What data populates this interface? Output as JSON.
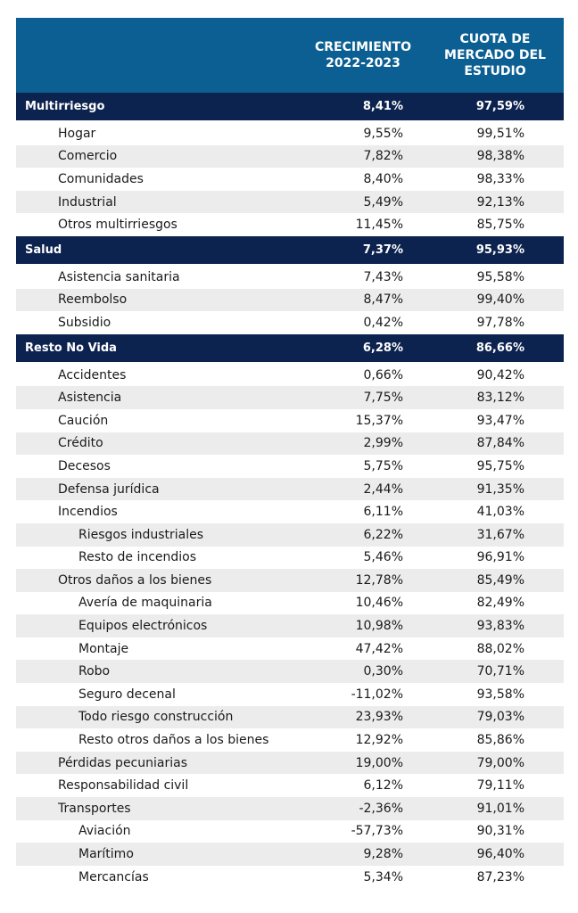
{
  "header": {
    "col1": "CRECIMIENTO\n2022-2023",
    "col2": "CUOTA DE\nMERCADO DEL\nESTUDIO"
  },
  "groups": [
    {
      "label": "Multirriesgo",
      "growth": "8,41%",
      "share": "97,59%",
      "rows": [
        {
          "label": "Hogar",
          "growth": "9,55%",
          "share": "99,51%",
          "level": 1
        },
        {
          "label": "Comercio",
          "growth": "7,82%",
          "share": "98,38%",
          "level": 1
        },
        {
          "label": "Comunidades",
          "growth": "8,40%",
          "share": "98,33%",
          "level": 1
        },
        {
          "label": "Industrial",
          "growth": "5,49%",
          "share": "92,13%",
          "level": 1
        },
        {
          "label": "Otros multirriesgos",
          "growth": "11,45%",
          "share": "85,75%",
          "level": 1
        }
      ]
    },
    {
      "label": "Salud",
      "growth": "7,37%",
      "share": "95,93%",
      "rows": [
        {
          "label": "Asistencia sanitaria",
          "growth": "7,43%",
          "share": "95,58%",
          "level": 1
        },
        {
          "label": "Reembolso",
          "growth": "8,47%",
          "share": "99,40%",
          "level": 1
        },
        {
          "label": "Subsidio",
          "growth": "0,42%",
          "share": "97,78%",
          "level": 1
        }
      ]
    },
    {
      "label": "Resto No Vida",
      "growth": "6,28%",
      "share": "86,66%",
      "rows": [
        {
          "label": "Accidentes",
          "growth": "0,66%",
          "share": "90,42%",
          "level": 1
        },
        {
          "label": "Asistencia",
          "growth": "7,75%",
          "share": "83,12%",
          "level": 1
        },
        {
          "label": "Caución",
          "growth": "15,37%",
          "share": "93,47%",
          "level": 1
        },
        {
          "label": "Crédito",
          "growth": "2,99%",
          "share": "87,84%",
          "level": 1
        },
        {
          "label": "Decesos",
          "growth": "5,75%",
          "share": "95,75%",
          "level": 1
        },
        {
          "label": "Defensa jurídica",
          "growth": "2,44%",
          "share": "91,35%",
          "level": 1
        },
        {
          "label": "Incendios",
          "growth": "6,11%",
          "share": "41,03%",
          "level": 1
        },
        {
          "label": "Riesgos industriales",
          "growth": "6,22%",
          "share": "31,67%",
          "level": 2
        },
        {
          "label": "Resto de incendios",
          "growth": "5,46%",
          "share": "96,91%",
          "level": 2
        },
        {
          "label": "Otros daños a los bienes",
          "growth": "12,78%",
          "share": "85,49%",
          "level": 1
        },
        {
          "label": "Avería de maquinaria",
          "growth": "10,46%",
          "share": "82,49%",
          "level": 2
        },
        {
          "label": "Equipos electrónicos",
          "growth": "10,98%",
          "share": "93,83%",
          "level": 2
        },
        {
          "label": "Montaje",
          "growth": "47,42%",
          "share": "88,02%",
          "level": 2
        },
        {
          "label": "Robo",
          "growth": "0,30%",
          "share": "70,71%",
          "level": 2
        },
        {
          "label": "Seguro decenal",
          "growth": "-11,02%",
          "share": "93,58%",
          "level": 2
        },
        {
          "label": "Todo riesgo construcción",
          "growth": "23,93%",
          "share": "79,03%",
          "level": 2
        },
        {
          "label": "Resto otros daños a los bienes",
          "growth": "12,92%",
          "share": "85,86%",
          "level": 2
        },
        {
          "label": "Pérdidas pecuniarias",
          "growth": "19,00%",
          "share": "79,00%",
          "level": 1
        },
        {
          "label": "Responsabilidad civil",
          "growth": "6,12%",
          "share": "79,11%",
          "level": 1
        },
        {
          "label": "Transportes",
          "growth": "-2,36%",
          "share": "91,01%",
          "level": 1
        },
        {
          "label": "Aviación",
          "growth": "-57,73%",
          "share": "90,31%",
          "level": 2
        },
        {
          "label": "Marítimo",
          "growth": "9,28%",
          "share": "96,40%",
          "level": 2
        },
        {
          "label": "Mercancías",
          "growth": "5,34%",
          "share": "87,23%",
          "level": 2
        }
      ]
    }
  ]
}
